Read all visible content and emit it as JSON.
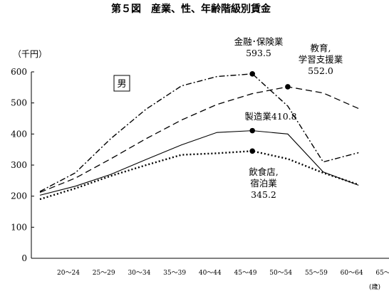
{
  "chart_data": {
    "type": "line",
    "title": "第５図　産業、性、年齢階級別賃金",
    "unit_label": "（千円）",
    "xlabel": "(歳)",
    "ylabel": "",
    "ylim": [
      0,
      600
    ],
    "yticks": [
      0,
      100,
      200,
      300,
      400,
      500,
      600
    ],
    "grid": false,
    "sex_label": "男",
    "categories": [
      "20～24",
      "25～29",
      "30～34",
      "35～39",
      "40～44",
      "45～49",
      "50～54",
      "55～59",
      "60～64",
      "65～69"
    ],
    "series": [
      {
        "name": "金融･保険業",
        "values": [
          215,
          275,
          385,
          480,
          555,
          585,
          593.5,
          490,
          310,
          340
        ],
        "peak_index": 6,
        "annotation": [
          "金融･保険業",
          "593.5"
        ],
        "style": "dashdot"
      },
      {
        "name": "教育,学習支援業",
        "values": [
          212,
          258,
          320,
          385,
          445,
          495,
          530,
          552.0,
          532,
          482
        ],
        "peak_index": 7,
        "annotation": [
          "教育,",
          "学習支援業",
          "552.0"
        ],
        "style": "dash"
      },
      {
        "name": "製造業",
        "values": [
          203,
          232,
          270,
          318,
          365,
          405,
          410.8,
          400,
          278,
          235
        ],
        "peak_index": 6,
        "annotation": [
          "製造業410.8"
        ],
        "style": "solid"
      },
      {
        "name": "飲食店,宿泊業",
        "values": [
          190,
          225,
          265,
          300,
          333,
          338,
          345.2,
          320,
          275,
          237
        ],
        "peak_index": 6,
        "annotation": [
          "飲食店,",
          "宿泊業",
          "345.2"
        ],
        "style": "dot"
      }
    ]
  }
}
